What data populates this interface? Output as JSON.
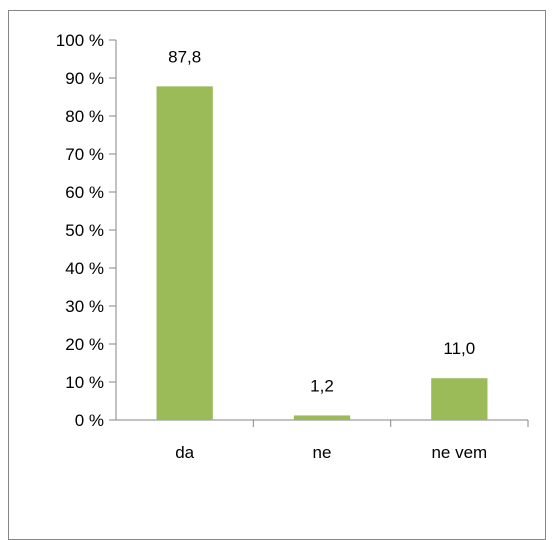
{
  "chart_data": {
    "type": "bar",
    "categories": [
      "da",
      "ne",
      "ne vem"
    ],
    "values": [
      87.8,
      1.2,
      11.0
    ],
    "data_labels": [
      "87,8",
      "1,2",
      "11,0"
    ],
    "title": "",
    "xlabel": "",
    "ylabel": "",
    "ylim": [
      0,
      100
    ],
    "y_ticks": [
      0,
      10,
      20,
      30,
      40,
      50,
      60,
      70,
      80,
      90,
      100
    ],
    "y_tick_labels": [
      "0 %",
      "10 %",
      "20 %",
      "30 %",
      "40 %",
      "50 %",
      "60 %",
      "70 %",
      "80 %",
      "90 %",
      "100 %"
    ],
    "grid": false,
    "legend": "none",
    "bar_color": "#9BBB59",
    "axis_color": "#868686"
  }
}
